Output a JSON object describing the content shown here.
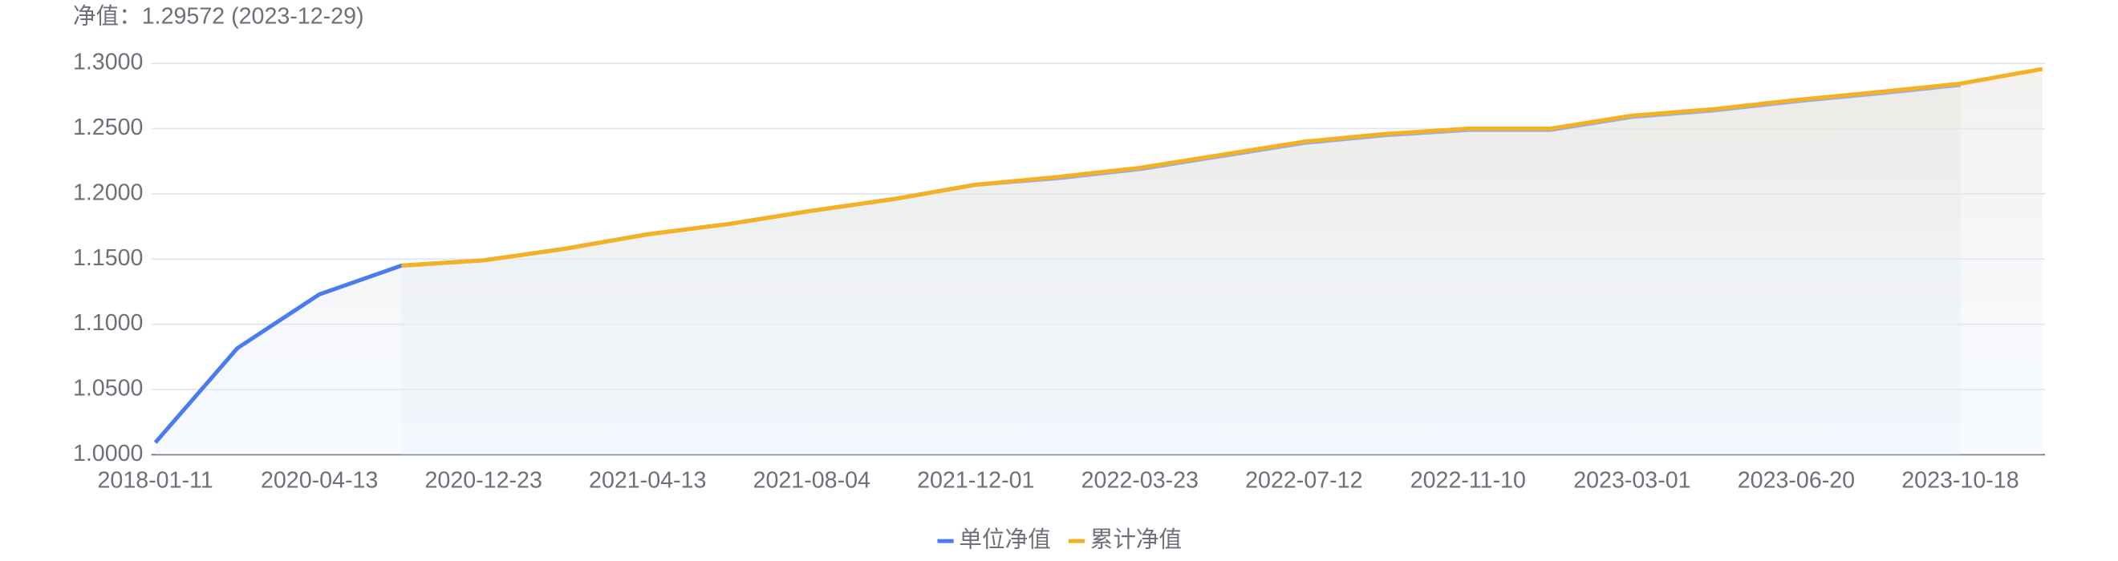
{
  "chart_data": {
    "type": "line",
    "title": "净值：1.29572 (2023-12-29)",
    "categories": [
      "2018-01-11",
      null,
      "2020-04-13",
      null,
      "2020-12-23",
      null,
      "2021-04-13",
      null,
      "2021-08-04",
      null,
      "2021-12-01",
      null,
      "2022-03-23",
      null,
      "2022-07-12",
      null,
      "2022-11-10",
      null,
      "2023-03-01",
      null,
      "2023-06-20",
      null,
      "2023-10-18",
      null
    ],
    "series": [
      {
        "name": "单位净值",
        "color": "#4a7cf0",
        "values": [
          1.0093,
          1.0817,
          1.123,
          1.145,
          1.149,
          1.158,
          1.169,
          1.177,
          1.187,
          1.196,
          1.207,
          1.212,
          1.219,
          1.229,
          1.239,
          1.245,
          1.249,
          1.249,
          1.259,
          1.264,
          1.271,
          1.277,
          1.2835,
          null
        ]
      },
      {
        "name": "累计净值",
        "color": "#f5b120",
        "values": [
          null,
          null,
          null,
          1.145,
          1.149,
          1.158,
          1.169,
          1.177,
          1.187,
          1.196,
          1.207,
          1.213,
          1.22,
          1.23,
          1.24,
          1.246,
          1.25,
          1.25,
          1.26,
          1.265,
          1.272,
          1.278,
          1.2845,
          1.29572
        ]
      }
    ],
    "ylim": [
      1.0,
      1.3
    ],
    "yticks": [
      {
        "value": 1.0,
        "label": "1.0000"
      },
      {
        "value": 1.05,
        "label": "1.0500"
      },
      {
        "value": 1.1,
        "label": "1.1000"
      },
      {
        "value": 1.15,
        "label": "1.1500"
      },
      {
        "value": 1.2,
        "label": "1.2000"
      },
      {
        "value": 1.25,
        "label": "1.2500"
      },
      {
        "value": 1.3,
        "label": "1.3000"
      }
    ],
    "grid": true
  }
}
